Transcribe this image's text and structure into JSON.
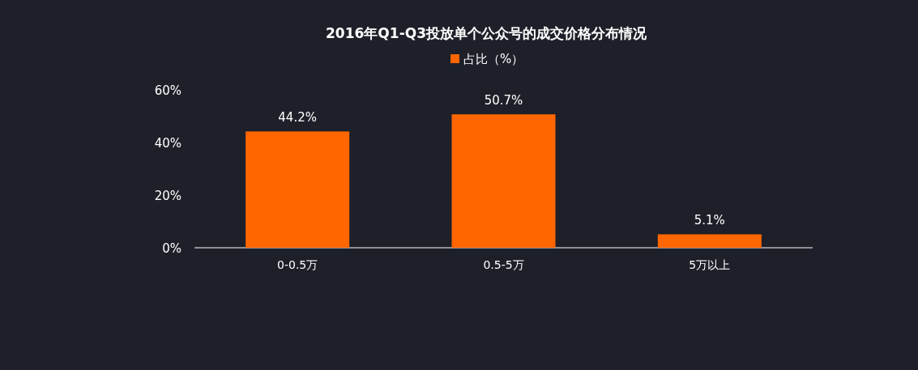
{
  "chart_data": {
    "type": "bar",
    "title": "2016年Q1-Q3投放单个公众号的成交价格分布情况",
    "categories": [
      "0-0.5万",
      "0.5-5万",
      "5万以上"
    ],
    "series": [
      {
        "name": "占比（%）",
        "color": "#ff6600",
        "values": [
          44.2,
          50.7,
          5.1
        ]
      }
    ],
    "value_labels": [
      "44.2%",
      "50.7%",
      "5.1%"
    ],
    "ylim": [
      0,
      60
    ],
    "yticks": [
      {
        "value": 0,
        "label": "0%"
      },
      {
        "value": 20,
        "label": "20%"
      },
      {
        "value": 40,
        "label": "40%"
      },
      {
        "value": 60,
        "label": "60%"
      }
    ],
    "grid": false,
    "legend": "top"
  }
}
